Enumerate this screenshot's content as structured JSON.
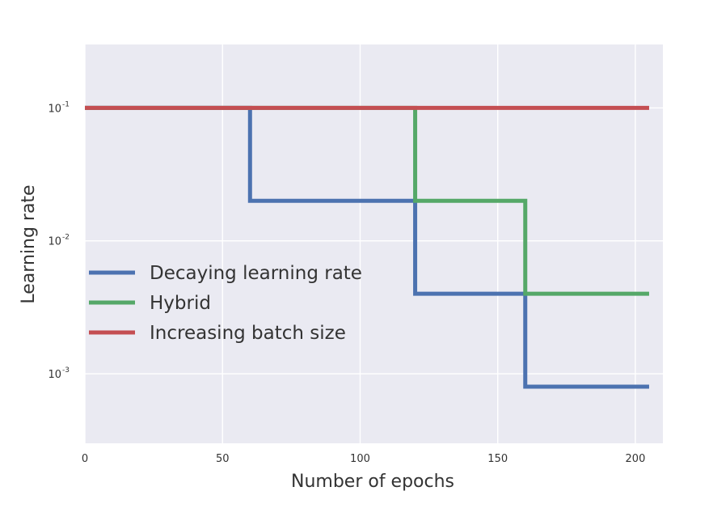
{
  "chart_data": {
    "type": "line",
    "title": "",
    "xlabel": "Number of epochs",
    "ylabel": "Learning rate",
    "xlim": [
      0,
      210
    ],
    "ylim": [
      0.0003,
      0.3
    ],
    "yscale": "log",
    "grid": true,
    "legend_position": "center-left",
    "x_ticks": [
      {
        "value": 0,
        "label": "0"
      },
      {
        "value": 50,
        "label": "50"
      },
      {
        "value": 100,
        "label": "100"
      },
      {
        "value": 150,
        "label": "150"
      },
      {
        "value": 200,
        "label": "200"
      }
    ],
    "y_ticks": [
      {
        "value": 0.1,
        "base": "10",
        "exp": "-1"
      },
      {
        "value": 0.01,
        "base": "10",
        "exp": "-2"
      },
      {
        "value": 0.001,
        "base": "10",
        "exp": "-3"
      }
    ],
    "series": [
      {
        "name": "Decaying learning rate",
        "color": "#4c72b0",
        "x": [
          0,
          60,
          60,
          120,
          120,
          160,
          160,
          205
        ],
        "y": [
          0.1,
          0.1,
          0.02,
          0.02,
          0.004,
          0.004,
          0.0008,
          0.0008
        ]
      },
      {
        "name": "Hybrid",
        "color": "#55a868",
        "x": [
          0,
          120,
          120,
          160,
          160,
          205
        ],
        "y": [
          0.1,
          0.1,
          0.02,
          0.02,
          0.004,
          0.004
        ]
      },
      {
        "name": "Increasing batch size",
        "color": "#c44e52",
        "x": [
          0,
          205
        ],
        "y": [
          0.1,
          0.1
        ]
      }
    ],
    "colors": {
      "plot_background": "#eaeaf2",
      "grid": "#ffffff"
    }
  }
}
